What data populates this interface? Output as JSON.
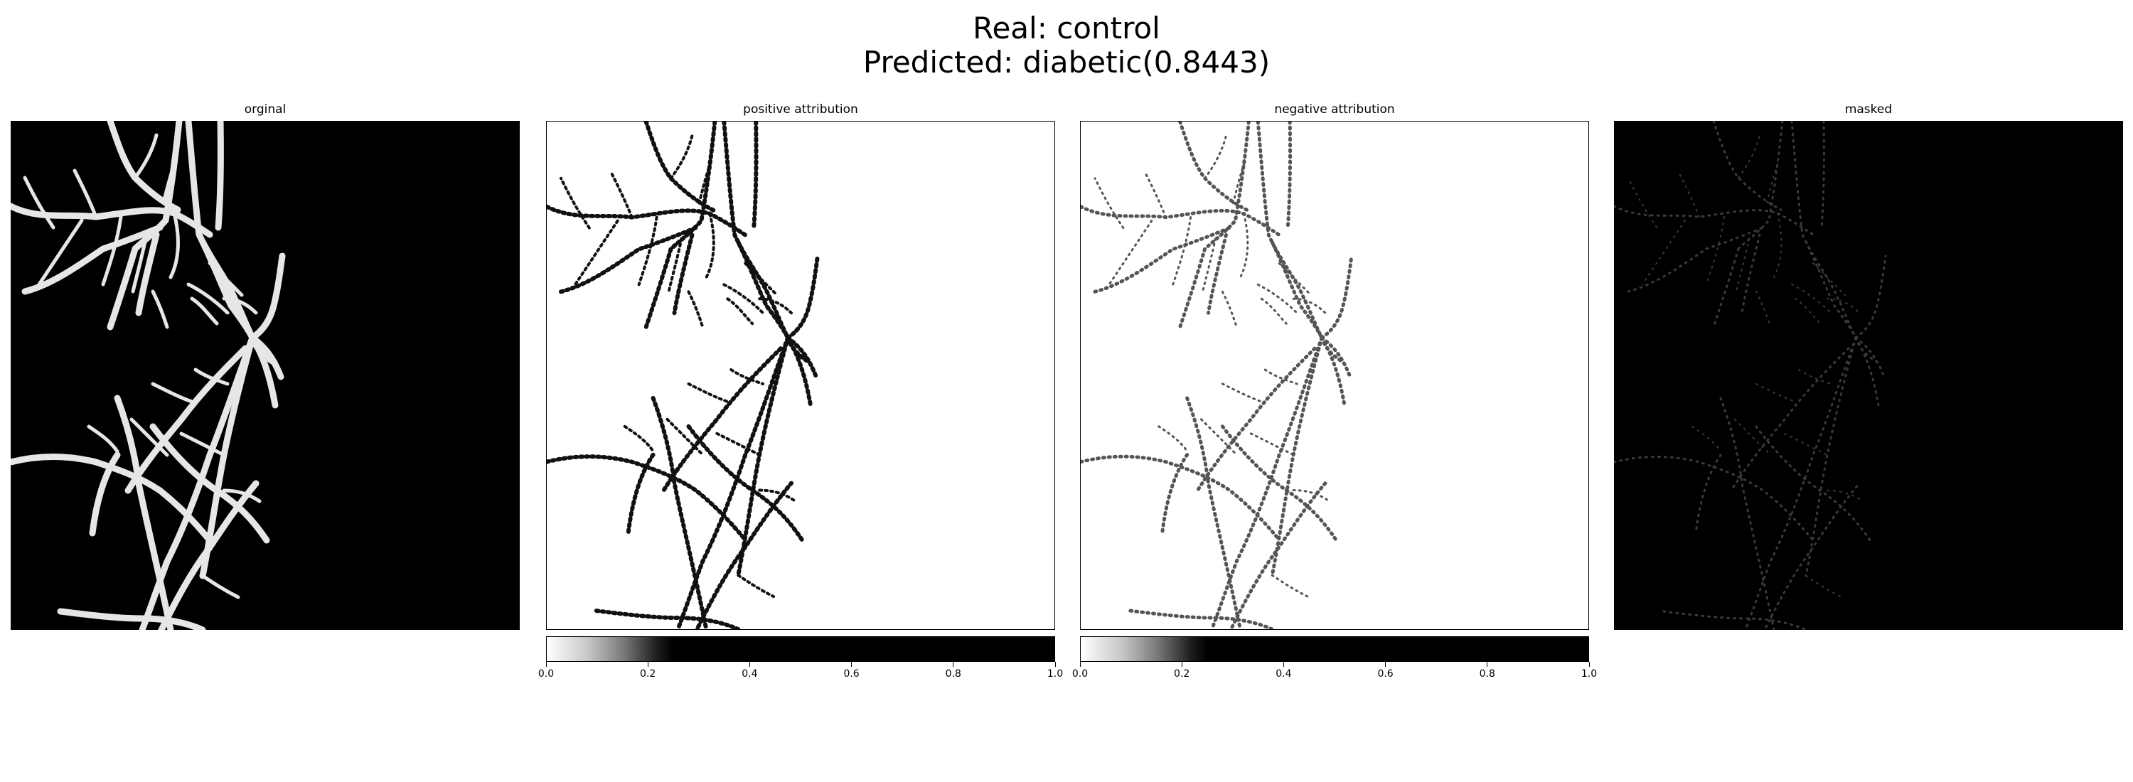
{
  "figure": {
    "title_line1": "Real: control",
    "title_line2": "Predicted: diabetic(0.8443)"
  },
  "panels": [
    {
      "title": "orginal",
      "background": "#000000",
      "vessel_color": "#e6e6e6"
    },
    {
      "title": "positive attribution",
      "background": "#ffffff",
      "vessel_color": "#111111"
    },
    {
      "title": "negative attribution",
      "background": "#ffffff",
      "vessel_color": "#555555"
    },
    {
      "title": "masked",
      "background": "#000000",
      "vessel_color": "#3a3a3a"
    }
  ],
  "colorbar": {
    "colormap": "grayscale white-to-black",
    "ticks": [
      "0.0",
      "0.2",
      "0.4",
      "0.6",
      "0.8",
      "1.0"
    ]
  }
}
